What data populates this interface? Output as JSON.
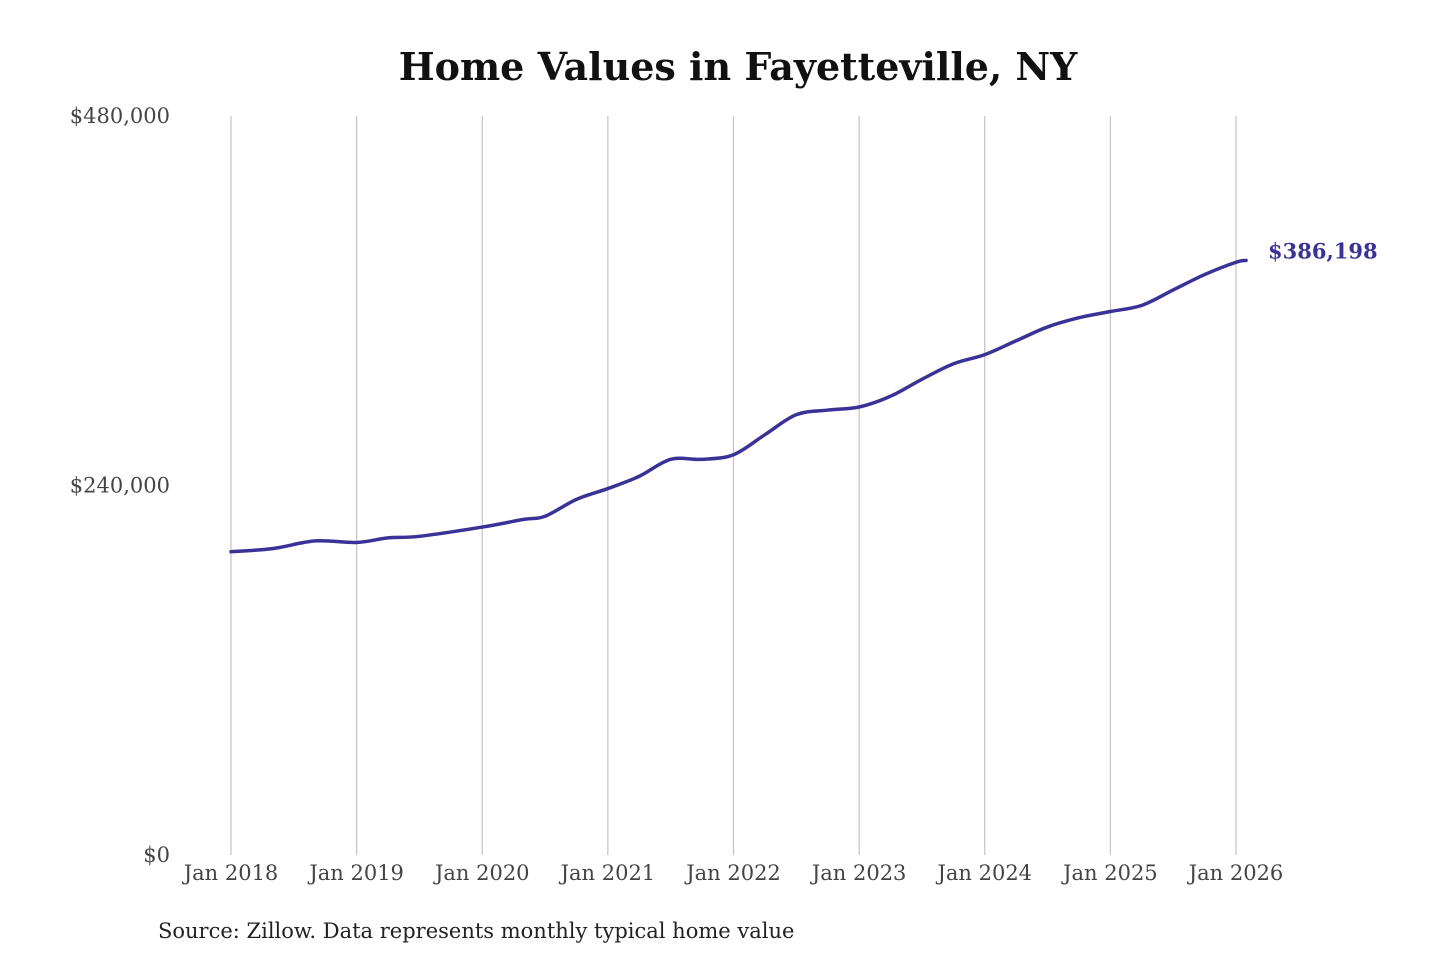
{
  "chart_data": {
    "type": "line",
    "title": "Home Values in Fayetteville, NY",
    "xlabel": "",
    "ylabel": "",
    "ylim": [
      0,
      480000
    ],
    "xlim": [
      2018,
      2026.1
    ],
    "y_ticks": [
      {
        "value": 0,
        "label": "$0"
      },
      {
        "value": 240000,
        "label": "$240,000"
      },
      {
        "value": 480000,
        "label": "$480,000"
      }
    ],
    "x_ticks": [
      {
        "value": 2018,
        "label": "Jan 2018"
      },
      {
        "value": 2019,
        "label": "Jan 2019"
      },
      {
        "value": 2020,
        "label": "Jan 2020"
      },
      {
        "value": 2021,
        "label": "Jan 2021"
      },
      {
        "value": 2022,
        "label": "Jan 2022"
      },
      {
        "value": 2023,
        "label": "Jan 2023"
      },
      {
        "value": 2024,
        "label": "Jan 2024"
      },
      {
        "value": 2025,
        "label": "Jan 2025"
      },
      {
        "value": 2026,
        "label": "Jan 2026"
      }
    ],
    "grid": "vertical",
    "series": [
      {
        "name": "Typical home value",
        "color": "#3a3296",
        "x": [
          2018,
          2018.33,
          2018.67,
          2019,
          2019.25,
          2019.5,
          2020,
          2020.33,
          2020.5,
          2020.75,
          2021,
          2021.25,
          2021.5,
          2021.75,
          2022,
          2022.25,
          2022.5,
          2022.75,
          2023,
          2023.25,
          2023.5,
          2023.75,
          2024,
          2024.25,
          2024.5,
          2024.75,
          2025,
          2025.25,
          2025.5,
          2025.75,
          2026,
          2026.08
        ],
        "values": [
          197000,
          199000,
          204000,
          203000,
          206000,
          207000,
          213000,
          218000,
          220000,
          231000,
          238000,
          246000,
          257000,
          257000,
          260000,
          273000,
          286000,
          289000,
          291000,
          298000,
          309000,
          319000,
          325000,
          334000,
          343000,
          349000,
          353000,
          357000,
          367000,
          377000,
          385000,
          386198
        ]
      }
    ],
    "end_label": "$386,198",
    "source": "Source: Zillow. Data represents monthly typical home value"
  }
}
